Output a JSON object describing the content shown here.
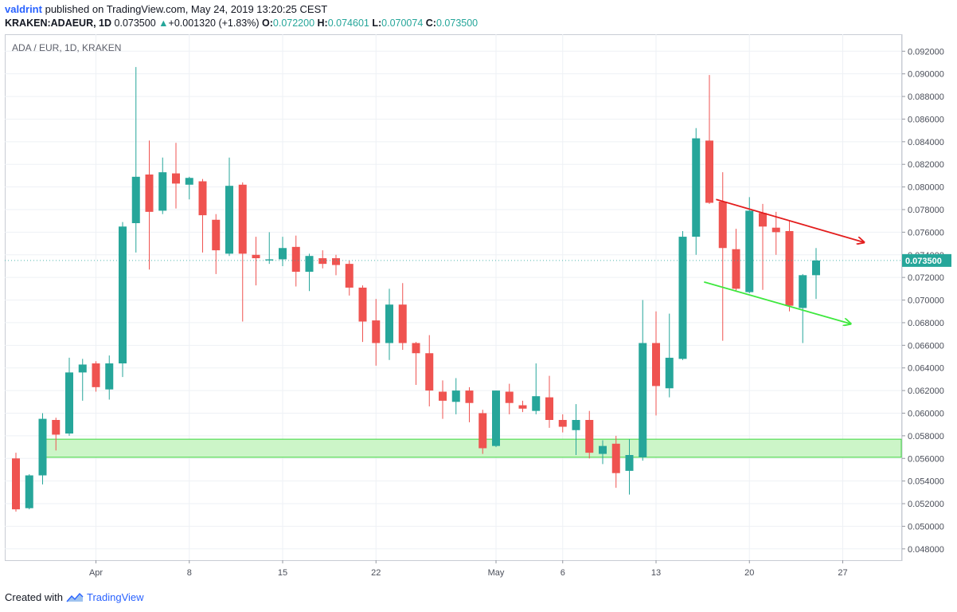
{
  "header": {
    "author": "valdrint",
    "published_text": "published on TradingView.com, May 24, 2019 13:20:25 CEST"
  },
  "info": {
    "symbol": "KRAKEN:ADAEUR, 1D",
    "last": "0.073500",
    "change": "+0.001320 (+1.83%)",
    "o_label": "O:",
    "o_value": "0.072200",
    "h_label": "H:",
    "h_value": "0.074601",
    "l_label": "L:",
    "l_value": "0.070074",
    "c_label": "C:",
    "c_value": "0.073500"
  },
  "footer": {
    "created_with": "Created with",
    "brand": "TradingView"
  },
  "colors": {
    "up": "#26a69a",
    "down": "#ef5350",
    "support_fill": "#ccf5c8",
    "support_border": "#3ed63e",
    "red_line": "#e31d1d",
    "green_line": "#3ee83e"
  },
  "chart_data": {
    "type": "candlestick",
    "title": "ADA / EUR, 1D, KRAKEN",
    "y_range": [
      0.047,
      0.0935
    ],
    "y_ticks": [
      "0.048000",
      "0.050000",
      "0.052000",
      "0.054000",
      "0.056000",
      "0.058000",
      "0.060000",
      "0.062000",
      "0.064000",
      "0.066000",
      "0.068000",
      "0.070000",
      "0.072000",
      "0.074000",
      "0.076000",
      "0.078000",
      "0.080000",
      "0.082000",
      "0.084000",
      "0.086000",
      "0.088000",
      "0.090000",
      "0.092000"
    ],
    "x_ticks": [
      {
        "label": "Apr",
        "day": 5
      },
      {
        "label": "8",
        "day": 12
      },
      {
        "label": "15",
        "day": 19
      },
      {
        "label": "22",
        "day": 26
      },
      {
        "label": "May",
        "day": 35
      },
      {
        "label": "6",
        "day": 40
      },
      {
        "label": "13",
        "day": 47
      },
      {
        "label": "20",
        "day": 54
      },
      {
        "label": "27",
        "day": 61
      }
    ],
    "last_price_label": "0.073500",
    "support_zone": [
      0.0561,
      0.0577
    ],
    "trendlines": [
      {
        "color": "red",
        "from": [
          51.5,
          0.0789
        ],
        "to": [
          62.6,
          0.0751
        ]
      },
      {
        "color": "green",
        "from": [
          50.6,
          0.0716
        ],
        "to": [
          61.6,
          0.0679
        ]
      }
    ],
    "candles": [
      {
        "day": -1,
        "o": 0.056,
        "h": 0.0565,
        "l": 0.0513,
        "c": 0.0515
      },
      {
        "day": 0,
        "o": 0.0516,
        "h": 0.0546,
        "l": 0.0515,
        "c": 0.0545
      },
      {
        "day": 1,
        "o": 0.0545,
        "h": 0.06,
        "l": 0.0537,
        "c": 0.0595
      },
      {
        "day": 2,
        "o": 0.0594,
        "h": 0.0596,
        "l": 0.0567,
        "c": 0.0581
      },
      {
        "day": 3,
        "o": 0.0582,
        "h": 0.0649,
        "l": 0.058,
        "c": 0.0636
      },
      {
        "day": 4,
        "o": 0.0636,
        "h": 0.0648,
        "l": 0.0611,
        "c": 0.0643
      },
      {
        "day": 5,
        "o": 0.0644,
        "h": 0.0646,
        "l": 0.0619,
        "c": 0.0623
      },
      {
        "day": 6,
        "o": 0.0621,
        "h": 0.0651,
        "l": 0.0612,
        "c": 0.0644
      },
      {
        "day": 7,
        "o": 0.0644,
        "h": 0.0769,
        "l": 0.0632,
        "c": 0.0765
      },
      {
        "day": 8,
        "o": 0.0768,
        "h": 0.0906,
        "l": 0.0742,
        "c": 0.0809
      },
      {
        "day": 9,
        "o": 0.0811,
        "h": 0.0841,
        "l": 0.0727,
        "c": 0.0778
      },
      {
        "day": 10,
        "o": 0.0779,
        "h": 0.0826,
        "l": 0.0776,
        "c": 0.0813
      },
      {
        "day": 11,
        "o": 0.0812,
        "h": 0.0839,
        "l": 0.0781,
        "c": 0.0803
      },
      {
        "day": 12,
        "o": 0.0802,
        "h": 0.0809,
        "l": 0.0789,
        "c": 0.0808
      },
      {
        "day": 13,
        "o": 0.0805,
        "h": 0.0807,
        "l": 0.0742,
        "c": 0.0775
      },
      {
        "day": 14,
        "o": 0.0771,
        "h": 0.0776,
        "l": 0.0723,
        "c": 0.0744
      },
      {
        "day": 15,
        "o": 0.0741,
        "h": 0.0826,
        "l": 0.0739,
        "c": 0.0801
      },
      {
        "day": 16,
        "o": 0.0802,
        "h": 0.0804,
        "l": 0.0681,
        "c": 0.0741
      },
      {
        "day": 17,
        "o": 0.074,
        "h": 0.0756,
        "l": 0.0713,
        "c": 0.0737
      },
      {
        "day": 18,
        "o": 0.0735,
        "h": 0.076,
        "l": 0.0732,
        "c": 0.0736
      },
      {
        "day": 19,
        "o": 0.0736,
        "h": 0.0756,
        "l": 0.073,
        "c": 0.0746
      },
      {
        "day": 20,
        "o": 0.0747,
        "h": 0.0757,
        "l": 0.0712,
        "c": 0.0725
      },
      {
        "day": 21,
        "o": 0.0725,
        "h": 0.0741,
        "l": 0.0708,
        "c": 0.0739
      },
      {
        "day": 22,
        "o": 0.0737,
        "h": 0.0744,
        "l": 0.0728,
        "c": 0.0732
      },
      {
        "day": 23,
        "o": 0.0737,
        "h": 0.074,
        "l": 0.0722,
        "c": 0.0731
      },
      {
        "day": 24,
        "o": 0.0732,
        "h": 0.0735,
        "l": 0.0704,
        "c": 0.0711
      },
      {
        "day": 25,
        "o": 0.0711,
        "h": 0.0713,
        "l": 0.0663,
        "c": 0.0681
      },
      {
        "day": 26,
        "o": 0.0682,
        "h": 0.0701,
        "l": 0.0642,
        "c": 0.0662
      },
      {
        "day": 27,
        "o": 0.0662,
        "h": 0.071,
        "l": 0.0647,
        "c": 0.0696
      },
      {
        "day": 28,
        "o": 0.0696,
        "h": 0.0715,
        "l": 0.0656,
        "c": 0.0662
      },
      {
        "day": 29,
        "o": 0.0662,
        "h": 0.0663,
        "l": 0.0625,
        "c": 0.0653
      },
      {
        "day": 30,
        "o": 0.0653,
        "h": 0.0669,
        "l": 0.0606,
        "c": 0.062
      },
      {
        "day": 31,
        "o": 0.0619,
        "h": 0.0629,
        "l": 0.0595,
        "c": 0.0611
      },
      {
        "day": 32,
        "o": 0.061,
        "h": 0.0631,
        "l": 0.0599,
        "c": 0.062
      },
      {
        "day": 33,
        "o": 0.062,
        "h": 0.0623,
        "l": 0.0592,
        "c": 0.0609
      },
      {
        "day": 34,
        "o": 0.06,
        "h": 0.0603,
        "l": 0.0564,
        "c": 0.0569
      },
      {
        "day": 35,
        "o": 0.0571,
        "h": 0.062,
        "l": 0.057,
        "c": 0.062
      },
      {
        "day": 36,
        "o": 0.0619,
        "h": 0.0626,
        "l": 0.0599,
        "c": 0.0609
      },
      {
        "day": 37,
        "o": 0.0607,
        "h": 0.0611,
        "l": 0.0601,
        "c": 0.0604
      },
      {
        "day": 38,
        "o": 0.0602,
        "h": 0.0644,
        "l": 0.0599,
        "c": 0.0615
      },
      {
        "day": 39,
        "o": 0.0614,
        "h": 0.0633,
        "l": 0.0587,
        "c": 0.0594
      },
      {
        "day": 40,
        "o": 0.0594,
        "h": 0.0599,
        "l": 0.0583,
        "c": 0.0588
      },
      {
        "day": 41,
        "o": 0.0585,
        "h": 0.0608,
        "l": 0.0563,
        "c": 0.0594
      },
      {
        "day": 42,
        "o": 0.0594,
        "h": 0.0602,
        "l": 0.056,
        "c": 0.0565
      },
      {
        "day": 43,
        "o": 0.0564,
        "h": 0.0576,
        "l": 0.0555,
        "c": 0.0571
      },
      {
        "day": 44,
        "o": 0.0573,
        "h": 0.058,
        "l": 0.0534,
        "c": 0.0547
      },
      {
        "day": 45,
        "o": 0.0549,
        "h": 0.0577,
        "l": 0.0528,
        "c": 0.0563
      },
      {
        "day": 46,
        "o": 0.0561,
        "h": 0.07,
        "l": 0.0558,
        "c": 0.0662
      },
      {
        "day": 47,
        "o": 0.0662,
        "h": 0.069,
        "l": 0.0598,
        "c": 0.0624
      },
      {
        "day": 48,
        "o": 0.0622,
        "h": 0.0688,
        "l": 0.0614,
        "c": 0.0649
      },
      {
        "day": 49,
        "o": 0.0648,
        "h": 0.0761,
        "l": 0.0647,
        "c": 0.0756
      },
      {
        "day": 50,
        "o": 0.0756,
        "h": 0.0852,
        "l": 0.074,
        "c": 0.0843
      },
      {
        "day": 51,
        "o": 0.0841,
        "h": 0.0899,
        "l": 0.0785,
        "c": 0.0786
      },
      {
        "day": 52,
        "o": 0.0787,
        "h": 0.0813,
        "l": 0.0664,
        "c": 0.0746
      },
      {
        "day": 53,
        "o": 0.0745,
        "h": 0.0763,
        "l": 0.0708,
        "c": 0.071
      },
      {
        "day": 54,
        "o": 0.0707,
        "h": 0.0791,
        "l": 0.0706,
        "c": 0.0779
      },
      {
        "day": 55,
        "o": 0.0777,
        "h": 0.0785,
        "l": 0.0709,
        "c": 0.0765
      },
      {
        "day": 56,
        "o": 0.0764,
        "h": 0.0778,
        "l": 0.074,
        "c": 0.076
      },
      {
        "day": 57,
        "o": 0.0761,
        "h": 0.077,
        "l": 0.069,
        "c": 0.0695
      },
      {
        "day": 58,
        "o": 0.0693,
        "h": 0.0723,
        "l": 0.0662,
        "c": 0.0722
      },
      {
        "day": 59,
        "o": 0.0722,
        "h": 0.0746,
        "l": 0.0701,
        "c": 0.0735
      }
    ]
  }
}
